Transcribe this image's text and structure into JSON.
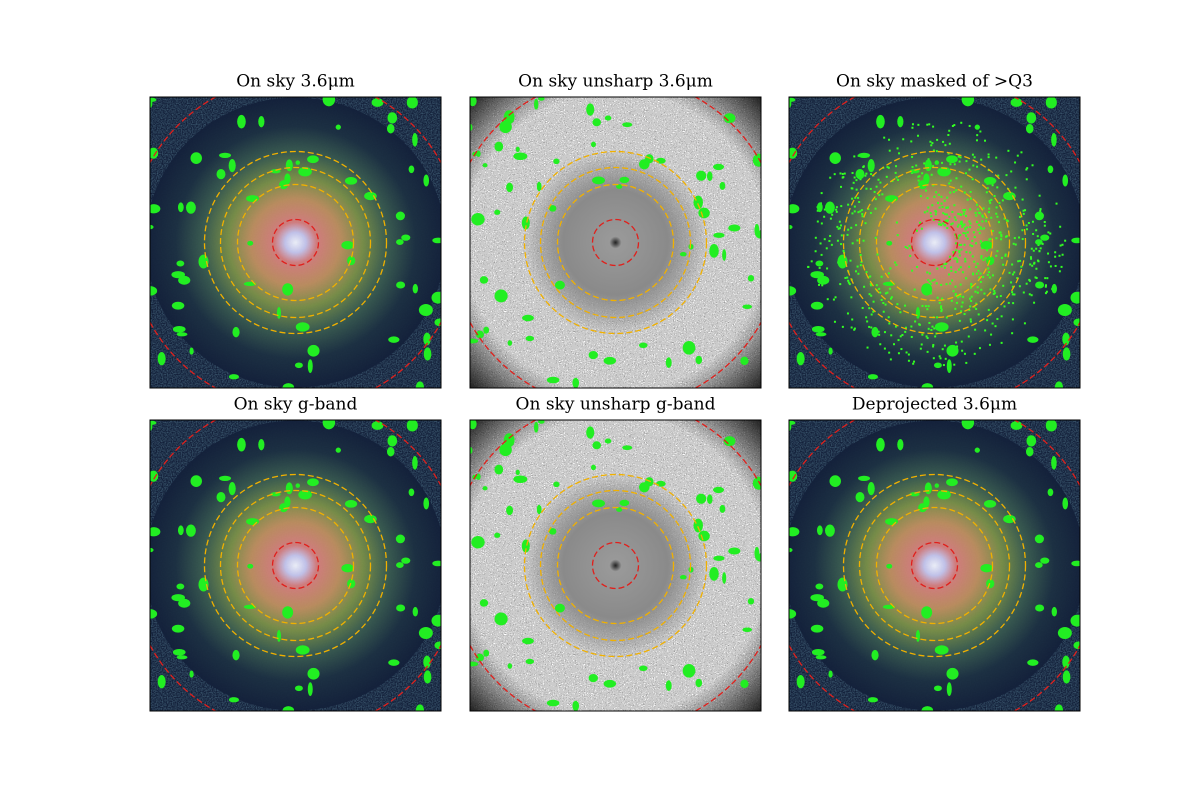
{
  "panels": [
    {
      "title": "On sky 3.6μm"
    },
    {
      "title": "On sky unsharp 3.6μm"
    },
    {
      "title": "On sky masked of >Q3"
    },
    {
      "title": "On sky g-band"
    },
    {
      "title": "On sky unsharp g-band"
    },
    {
      "title": "Deprojected 3.6μm"
    }
  ]
}
